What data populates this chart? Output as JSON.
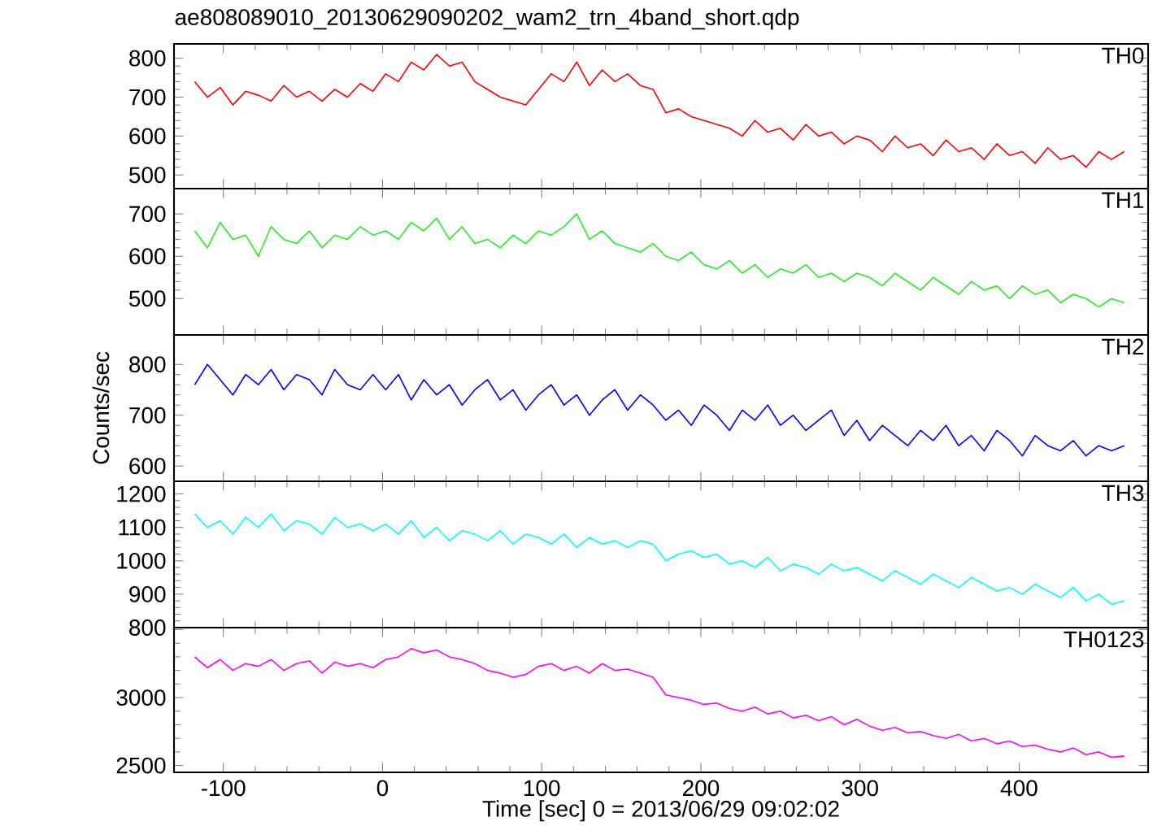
{
  "chart_data": [
    {
      "type": "line",
      "title": "ae808089010_20130629090202_wam2_trn_4band_short.qdp",
      "tick_labels": "y",
      "xlim": [
        -131,
        481
      ],
      "xticks": [
        -100,
        0,
        100,
        200,
        300,
        400
      ],
      "ylim": [
        465,
        837
      ],
      "yticks": [
        500,
        600,
        700,
        800
      ],
      "x": [
        -118,
        -110,
        -102,
        -94,
        -86,
        -78,
        -70,
        -62,
        -54,
        -46,
        -38,
        -30,
        -22,
        -14,
        -6,
        2,
        10,
        18,
        26,
        34,
        42,
        50,
        58,
        66,
        74,
        82,
        90,
        98,
        106,
        114,
        122,
        130,
        138,
        146,
        154,
        162,
        170,
        178,
        186,
        194,
        202,
        210,
        218,
        226,
        234,
        242,
        250,
        258,
        266,
        274,
        282,
        290,
        298,
        306,
        314,
        322,
        330,
        338,
        346,
        354,
        362,
        370,
        378,
        386,
        394,
        402,
        410,
        418,
        426,
        434,
        442,
        450,
        458,
        466
      ],
      "series": [
        {
          "name": "TH0",
          "color": "#ff0000",
          "values": [
            740,
            700,
            725,
            680,
            715,
            705,
            690,
            730,
            700,
            715,
            690,
            720,
            700,
            735,
            715,
            760,
            740,
            790,
            770,
            810,
            780,
            790,
            740,
            720,
            700,
            690,
            680,
            720,
            760,
            740,
            790,
            730,
            770,
            740,
            760,
            730,
            720,
            660,
            670,
            650,
            640,
            630,
            620,
            600,
            640,
            610,
            620,
            590,
            630,
            600,
            610,
            580,
            600,
            590,
            560,
            600,
            570,
            580,
            550,
            590,
            560,
            570,
            540,
            580,
            550,
            560,
            530,
            570,
            540,
            550,
            520,
            560,
            540,
            560
          ]
        }
      ]
    },
    {
      "type": "line",
      "tick_labels": "y",
      "xlim": [
        -131,
        481
      ],
      "xticks": [
        -100,
        0,
        100,
        200,
        300,
        400
      ],
      "ylim": [
        414,
        760
      ],
      "yticks": [
        500,
        600,
        700
      ],
      "x": [
        -118,
        -110,
        -102,
        -94,
        -86,
        -78,
        -70,
        -62,
        -54,
        -46,
        -38,
        -30,
        -22,
        -14,
        -6,
        2,
        10,
        18,
        26,
        34,
        42,
        50,
        58,
        66,
        74,
        82,
        90,
        98,
        106,
        114,
        122,
        130,
        138,
        146,
        154,
        162,
        170,
        178,
        186,
        194,
        202,
        210,
        218,
        226,
        234,
        242,
        250,
        258,
        266,
        274,
        282,
        290,
        298,
        306,
        314,
        322,
        330,
        338,
        346,
        354,
        362,
        370,
        378,
        386,
        394,
        402,
        410,
        418,
        426,
        434,
        442,
        450,
        458,
        466
      ],
      "series": [
        {
          "name": "TH1",
          "color": "#22ee22",
          "values": [
            660,
            620,
            680,
            640,
            650,
            600,
            670,
            640,
            630,
            660,
            620,
            650,
            640,
            670,
            650,
            660,
            640,
            680,
            660,
            690,
            640,
            670,
            630,
            640,
            620,
            650,
            630,
            660,
            650,
            670,
            700,
            640,
            660,
            630,
            620,
            610,
            630,
            600,
            590,
            610,
            580,
            570,
            590,
            560,
            580,
            550,
            570,
            560,
            580,
            550,
            560,
            540,
            560,
            550,
            530,
            560,
            540,
            520,
            550,
            530,
            510,
            540,
            520,
            530,
            500,
            530,
            510,
            520,
            490,
            510,
            500,
            480,
            500,
            490
          ]
        }
      ]
    },
    {
      "type": "line",
      "tick_labels": "y",
      "ylabel": "Counts/sec",
      "xlim": [
        -131,
        481
      ],
      "xticks": [
        -100,
        0,
        100,
        200,
        300,
        400
      ],
      "ylim": [
        570,
        858
      ],
      "yticks": [
        600,
        700,
        800
      ],
      "x": [
        -118,
        -110,
        -102,
        -94,
        -86,
        -78,
        -70,
        -62,
        -54,
        -46,
        -38,
        -30,
        -22,
        -14,
        -6,
        2,
        10,
        18,
        26,
        34,
        42,
        50,
        58,
        66,
        74,
        82,
        90,
        98,
        106,
        114,
        122,
        130,
        138,
        146,
        154,
        162,
        170,
        178,
        186,
        194,
        202,
        210,
        218,
        226,
        234,
        242,
        250,
        258,
        266,
        274,
        282,
        290,
        298,
        306,
        314,
        322,
        330,
        338,
        346,
        354,
        362,
        370,
        378,
        386,
        394,
        402,
        410,
        418,
        426,
        434,
        442,
        450,
        458,
        466
      ],
      "series": [
        {
          "name": "TH2",
          "color": "#0000ff",
          "values": [
            760,
            800,
            770,
            740,
            780,
            760,
            790,
            750,
            780,
            770,
            740,
            790,
            760,
            750,
            780,
            750,
            780,
            730,
            770,
            740,
            760,
            720,
            750,
            770,
            730,
            750,
            710,
            740,
            760,
            720,
            740,
            700,
            730,
            750,
            710,
            740,
            720,
            690,
            710,
            680,
            720,
            700,
            670,
            710,
            690,
            720,
            680,
            700,
            670,
            690,
            710,
            660,
            690,
            650,
            680,
            660,
            640,
            670,
            650,
            680,
            640,
            660,
            630,
            670,
            650,
            620,
            660,
            640,
            630,
            650,
            620,
            640,
            630,
            640
          ]
        }
      ]
    },
    {
      "type": "line",
      "tick_labels": "y",
      "xlim": [
        -131,
        481
      ],
      "xticks": [
        -100,
        0,
        100,
        200,
        300,
        400
      ],
      "ylim": [
        800,
        1238
      ],
      "yticks": [
        800,
        900,
        1000,
        1100,
        1200
      ],
      "x": [
        -118,
        -110,
        -102,
        -94,
        -86,
        -78,
        -70,
        -62,
        -54,
        -46,
        -38,
        -30,
        -22,
        -14,
        -6,
        2,
        10,
        18,
        26,
        34,
        42,
        50,
        58,
        66,
        74,
        82,
        90,
        98,
        106,
        114,
        122,
        130,
        138,
        146,
        154,
        162,
        170,
        178,
        186,
        194,
        202,
        210,
        218,
        226,
        234,
        242,
        250,
        258,
        266,
        274,
        282,
        290,
        298,
        306,
        314,
        322,
        330,
        338,
        346,
        354,
        362,
        370,
        378,
        386,
        394,
        402,
        410,
        418,
        426,
        434,
        442,
        450,
        458,
        466
      ],
      "series": [
        {
          "name": "TH3",
          "color": "#00ffff",
          "values": [
            1140,
            1100,
            1120,
            1080,
            1130,
            1100,
            1140,
            1090,
            1120,
            1110,
            1080,
            1130,
            1100,
            1110,
            1090,
            1110,
            1080,
            1120,
            1070,
            1100,
            1060,
            1090,
            1080,
            1060,
            1090,
            1050,
            1080,
            1070,
            1050,
            1080,
            1040,
            1070,
            1050,
            1060,
            1040,
            1060,
            1050,
            1000,
            1020,
            1030,
            1010,
            1020,
            990,
            1000,
            980,
            1010,
            970,
            990,
            980,
            960,
            990,
            970,
            980,
            960,
            940,
            970,
            950,
            930,
            960,
            940,
            920,
            950,
            930,
            910,
            920,
            900,
            930,
            910,
            890,
            920,
            880,
            900,
            870,
            880
          ]
        }
      ]
    },
    {
      "type": "line",
      "xlabel": "Time [sec] 0 = 2013/06/29 09:02:02",
      "xlim": [
        -131,
        481
      ],
      "xticks": [
        -100,
        0,
        100,
        200,
        300,
        400
      ],
      "ylim": [
        2450,
        3515
      ],
      "yticks": [
        2500,
        3000,
        {
          "value": 3500,
          "label": null
        }
      ],
      "x": [
        -118,
        -110,
        -102,
        -94,
        -86,
        -78,
        -70,
        -62,
        -54,
        -46,
        -38,
        -30,
        -22,
        -14,
        -6,
        2,
        10,
        18,
        26,
        34,
        42,
        50,
        58,
        66,
        74,
        82,
        90,
        98,
        106,
        114,
        122,
        130,
        138,
        146,
        154,
        162,
        170,
        178,
        186,
        194,
        202,
        210,
        218,
        226,
        234,
        242,
        250,
        258,
        266,
        274,
        282,
        290,
        298,
        306,
        314,
        322,
        330,
        338,
        346,
        354,
        362,
        370,
        378,
        386,
        394,
        402,
        410,
        418,
        426,
        434,
        442,
        450,
        458,
        466
      ],
      "series": [
        {
          "name": "TH0123",
          "color": "#ff00ff",
          "values": [
            3300,
            3220,
            3280,
            3200,
            3250,
            3230,
            3280,
            3200,
            3250,
            3270,
            3180,
            3260,
            3230,
            3250,
            3220,
            3280,
            3300,
            3360,
            3330,
            3350,
            3300,
            3280,
            3250,
            3200,
            3180,
            3150,
            3170,
            3230,
            3250,
            3200,
            3230,
            3180,
            3250,
            3200,
            3210,
            3180,
            3150,
            3020,
            3000,
            2980,
            2950,
            2960,
            2920,
            2900,
            2930,
            2880,
            2900,
            2850,
            2870,
            2830,
            2860,
            2800,
            2840,
            2790,
            2760,
            2780,
            2740,
            2750,
            2720,
            2700,
            2730,
            2680,
            2700,
            2660,
            2680,
            2640,
            2650,
            2620,
            2600,
            2630,
            2580,
            2600,
            2560,
            2570
          ]
        }
      ]
    }
  ]
}
